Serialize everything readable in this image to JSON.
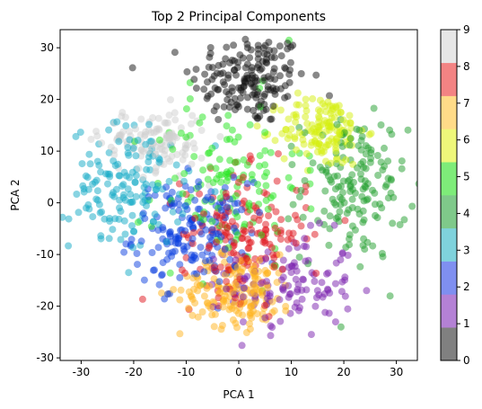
{
  "chart_data": {
    "type": "scatter",
    "title": "Top 2 Principal Components",
    "xlabel": "PCA 1",
    "ylabel": "PCA 2",
    "xlim": [
      -34,
      34
    ],
    "ylim": [
      -30.5,
      33.5
    ],
    "xticks": [
      -30,
      -20,
      -10,
      0,
      10,
      20,
      30
    ],
    "yticks": [
      -30,
      -20,
      -10,
      0,
      10,
      20,
      30
    ],
    "grid": false,
    "colorbar": {
      "min": 0,
      "max": 9,
      "ticks": [
        0,
        1,
        2,
        3,
        4,
        5,
        6,
        7,
        8,
        9
      ],
      "colors": [
        "#808080",
        "#b481d5",
        "#7f8ff0",
        "#7fd2dc",
        "#7fc98a",
        "#7eec79",
        "#eef77a",
        "#ffdb88",
        "#f38383",
        "#e6e6e6"
      ]
    },
    "clusters": [
      {
        "label": 0,
        "color": "#111111",
        "center": [
          2,
          24
        ],
        "spread": [
          5.5,
          4.5
        ],
        "count": 170
      },
      {
        "label": 1,
        "color": "#7a1fad",
        "center": [
          10,
          -16
        ],
        "spread": [
          6,
          5
        ],
        "count": 120
      },
      {
        "label": 2,
        "color": "#0a3ee0",
        "center": [
          -9,
          -6
        ],
        "spread": [
          5.5,
          5
        ],
        "count": 170
      },
      {
        "label": 3,
        "color": "#12aac6",
        "center": [
          -21,
          3
        ],
        "spread": [
          5.5,
          6
        ],
        "count": 150
      },
      {
        "label": 4,
        "color": "#1f9e2c",
        "center": [
          22,
          3
        ],
        "spread": [
          5,
          7
        ],
        "count": 160
      },
      {
        "label": 5,
        "color": "#22e61b",
        "center": [
          -2,
          4
        ],
        "spread": [
          7,
          8
        ],
        "count": 130
      },
      {
        "label": 6,
        "color": "#d6f010",
        "center": [
          16,
          14
        ],
        "spread": [
          4,
          3.5
        ],
        "count": 140
      },
      {
        "label": 7,
        "color": "#ffb31d",
        "center": [
          0,
          -17
        ],
        "spread": [
          5.5,
          3.5
        ],
        "count": 170
      },
      {
        "label": 8,
        "color": "#e0141b",
        "center": [
          1,
          -6
        ],
        "spread": [
          6,
          6
        ],
        "count": 170
      },
      {
        "label": 9,
        "color": "#cfcfcf",
        "center": [
          -16,
          12
        ],
        "spread": [
          5,
          3
        ],
        "count": 120
      }
    ]
  }
}
